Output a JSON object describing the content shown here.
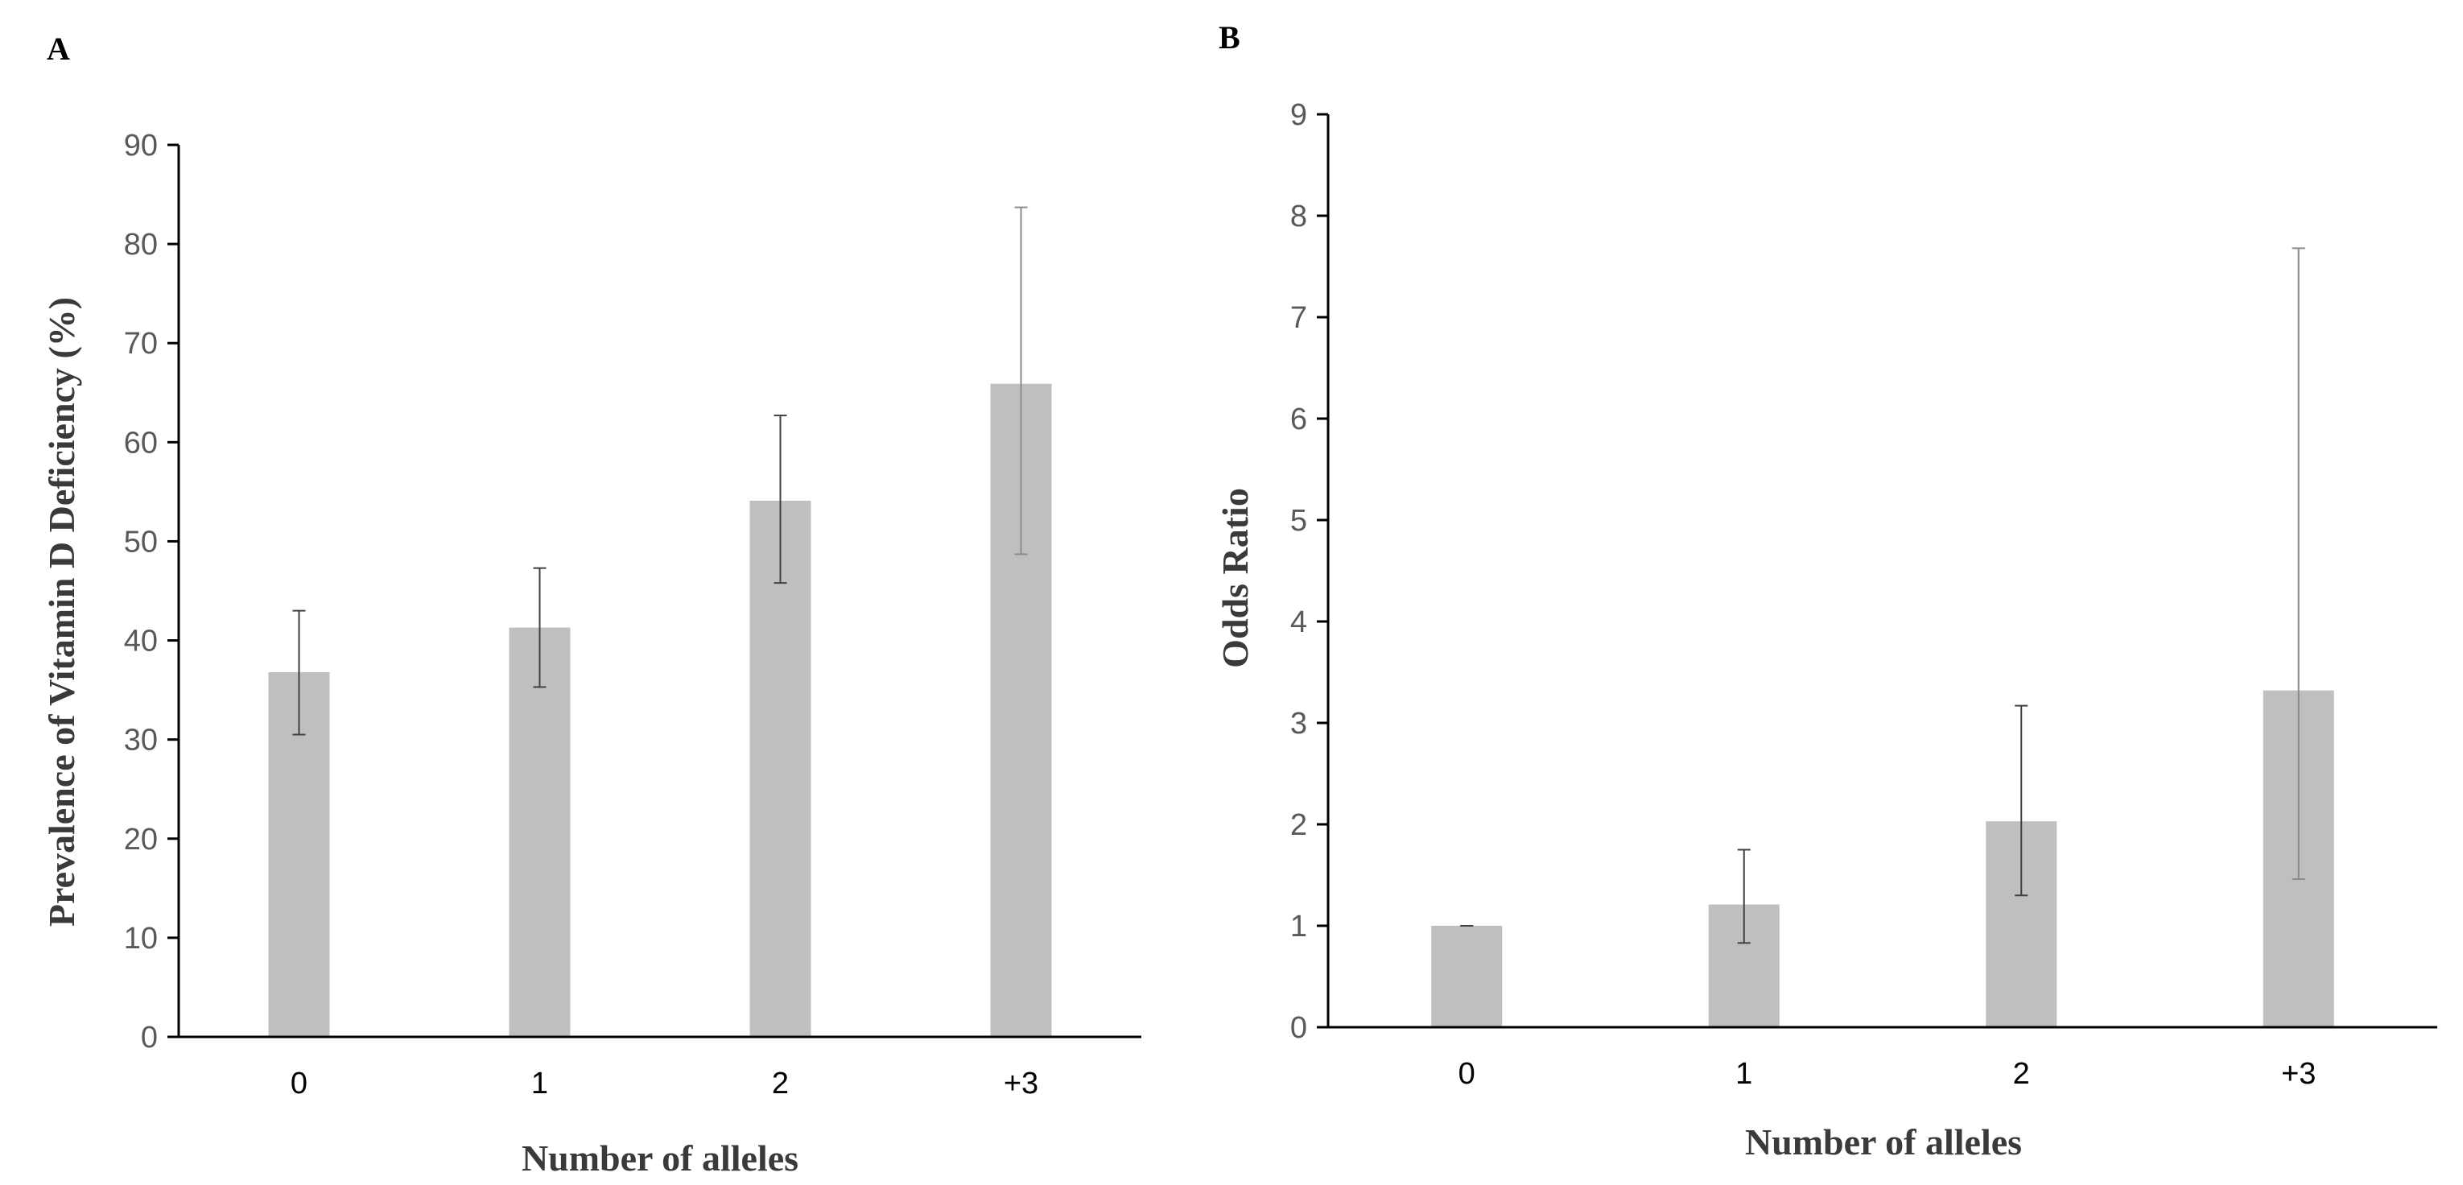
{
  "chart_data": [
    {
      "type": "bar",
      "panel_label": "A",
      "categories": [
        "0",
        "1",
        "2",
        "+3"
      ],
      "values": [
        36.8,
        41.3,
        54.1,
        65.9
      ],
      "error_low": [
        30.5,
        35.3,
        45.8,
        48.7
      ],
      "error_high": [
        43.0,
        47.3,
        62.7,
        83.7
      ],
      "ylim": [
        0,
        90
      ],
      "ytick_labels": [
        "0",
        "10",
        "20",
        "30",
        "40",
        "50",
        "60",
        "70",
        "80",
        "90"
      ],
      "xlabel": "Number of alleles",
      "ylabel": "Prevalence of Vitamin D Deficiency (%)",
      "grid": false,
      "bar_color": "#bfbfbf",
      "error_colors": [
        "#404040",
        "#404040",
        "#404040",
        "#8c8c8c"
      ]
    },
    {
      "type": "bar",
      "panel_label": "B",
      "categories": [
        "0",
        "1",
        "2",
        "+3"
      ],
      "values": [
        1.0,
        1.21,
        2.03,
        3.32
      ],
      "error_low": [
        1.0,
        0.83,
        1.3,
        1.46
      ],
      "error_high": [
        1.0,
        1.75,
        3.17,
        7.68
      ],
      "ylim": [
        0,
        9
      ],
      "ytick_labels": [
        "0",
        "1",
        "2",
        "3",
        "4",
        "5",
        "6",
        "7",
        "8",
        "9"
      ],
      "xlabel": "Number of alleles",
      "ylabel": "Odds Ratio",
      "grid": false,
      "bar_color": "#bfbfbf",
      "error_colors": [
        "#404040",
        "#404040",
        "#404040",
        "#8c8c8c"
      ]
    }
  ]
}
